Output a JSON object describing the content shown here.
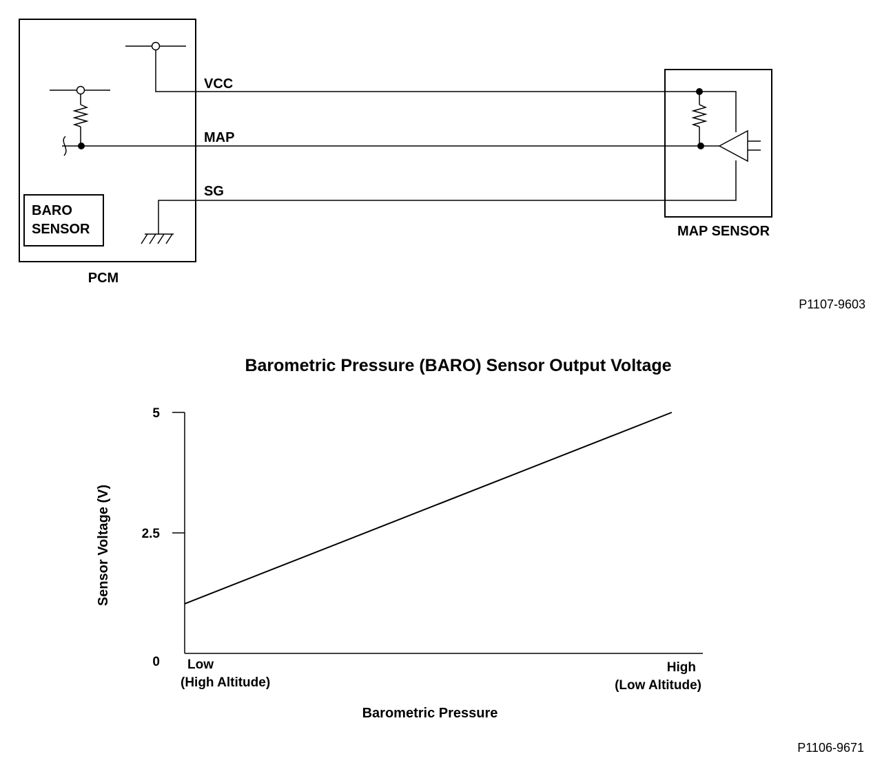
{
  "schematic": {
    "pcm_label": "PCM",
    "baro_sensor_line1": "BARO",
    "baro_sensor_line2": "SENSOR",
    "map_sensor_label": "MAP SENSOR",
    "wires": {
      "vcc": "VCC",
      "map": "MAP",
      "sg": "SG"
    },
    "figure_ref": "P1107-9603"
  },
  "chart": {
    "figure_ref": "P1106-9671"
  },
  "chart_data": {
    "type": "line",
    "title": "Barometric Pressure (BARO) Sensor Output Voltage",
    "xlabel": "Barometric Pressure",
    "ylabel": "Sensor Voltage (V)",
    "x_tick_labels": {
      "low": [
        "Low",
        "(High Altitude)"
      ],
      "high": [
        "High",
        "(Low Altitude)"
      ]
    },
    "y_tick_labels": [
      "0",
      "2.5",
      "5"
    ],
    "ylim": [
      0,
      5
    ],
    "xlim": [
      0,
      1
    ],
    "series": [
      {
        "x": [
          0,
          0.94
        ],
        "y": [
          1.03,
          5
        ]
      }
    ],
    "colors": {
      "line": "#000000"
    }
  }
}
